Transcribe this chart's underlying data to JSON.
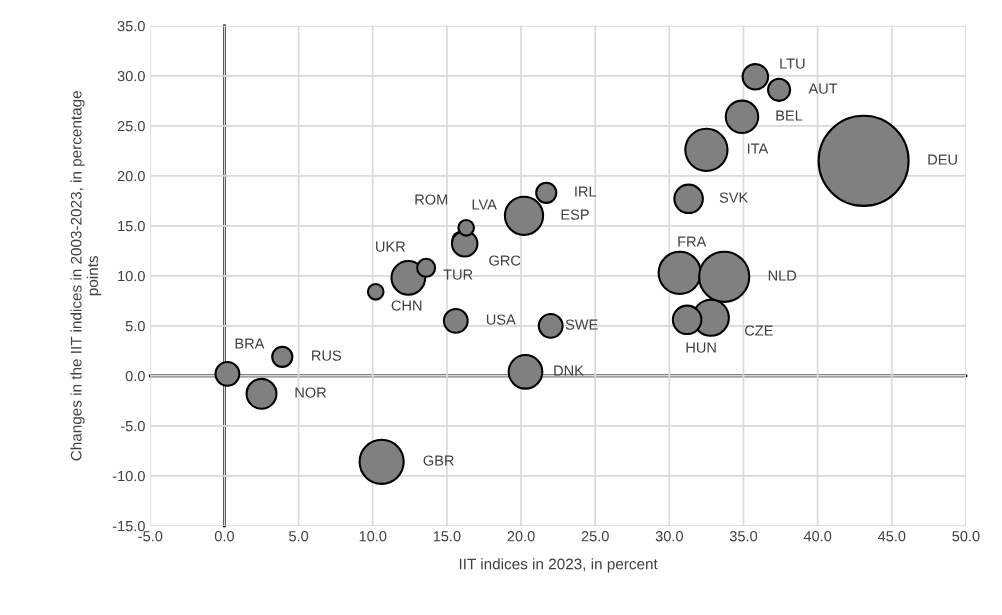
{
  "chart_data": {
    "type": "bubble",
    "xlabel": "IIT indices in 2023, in percent",
    "ylabel": "Changes in the IIT indices in 2003-2023, in percentage\npoints",
    "x": [
      0.2,
      3.9,
      2.5,
      10.2,
      12.4,
      13.6,
      15.9,
      16.2,
      16.3,
      20.2,
      21.7,
      15.6,
      22.0,
      20.3,
      10.6,
      35.8,
      37.4,
      34.9,
      32.5,
      43.1,
      31.3,
      30.7,
      33.7,
      32.8,
      31.2
    ],
    "values": [
      0.2,
      1.9,
      -1.8,
      8.4,
      9.8,
      10.8,
      13.6,
      13.2,
      14.8,
      16.0,
      18.3,
      5.5,
      5.0,
      0.4,
      -8.6,
      29.9,
      28.6,
      25.9,
      22.6,
      21.5,
      17.7,
      10.3,
      9.9,
      5.8,
      5.6
    ],
    "sizes": [
      0.07,
      0.05,
      0.11,
      0.03,
      0.14,
      0.04,
      0.03,
      0.08,
      0.03,
      0.18,
      0.05,
      0.07,
      0.07,
      0.14,
      0.24,
      0.08,
      0.06,
      0.13,
      0.22,
      1,
      0.1,
      0.22,
      0.31,
      0.16,
      0.1
    ],
    "value_labels": [
      "BRA",
      "RUS",
      "NOR",
      "CHN",
      "UKR",
      "TUR",
      "ROM",
      "GRC",
      "LVA",
      "ESP",
      "IRL",
      "USA",
      "SWE",
      "DNK",
      "GBR",
      "LTU",
      "AUT",
      "BEL",
      "ITA",
      "DEU",
      "SVK",
      "FRA",
      "NLD",
      "CZE",
      "HUN"
    ],
    "color": "#808080",
    "xlim": [
      -5,
      50
    ],
    "ylim": [
      -15,
      35
    ],
    "xticks": [
      {
        "value": -5,
        "label": "-5.0"
      },
      {
        "value": 0,
        "label": "0.0"
      },
      {
        "value": 5,
        "label": "5.0"
      },
      {
        "value": 10,
        "label": "10.0"
      },
      {
        "value": 15,
        "label": "15.0"
      },
      {
        "value": 20,
        "label": "20.0"
      },
      {
        "value": 25,
        "label": "25.0"
      },
      {
        "value": 30,
        "label": "30.0"
      },
      {
        "value": 35,
        "label": "35.0"
      },
      {
        "value": 40,
        "label": "40.0"
      },
      {
        "value": 45,
        "label": "45.0"
      },
      {
        "value": 50,
        "label": "50.0"
      }
    ],
    "yticks": [
      {
        "value": -15,
        "label": "-15.0"
      },
      {
        "value": -10,
        "label": "-10.0"
      },
      {
        "value": -5,
        "label": "-5.0"
      },
      {
        "value": 0,
        "label": "0.0"
      },
      {
        "value": 5,
        "label": "5.0"
      },
      {
        "value": 10,
        "label": "10.0"
      },
      {
        "value": 15,
        "label": "15.0"
      },
      {
        "value": 20,
        "label": "20.0"
      },
      {
        "value": 25,
        "label": "25.0"
      },
      {
        "value": 30,
        "label": "30.0"
      },
      {
        "value": 35,
        "label": "35.0"
      }
    ],
    "grid": true
  }
}
